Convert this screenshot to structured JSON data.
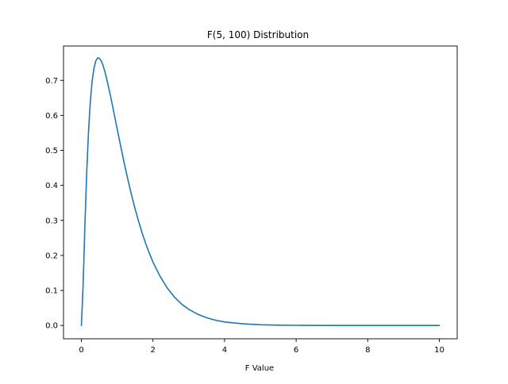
{
  "chart_data": {
    "type": "line",
    "title": "F(5, 100) Distribution",
    "xlabel": "F Value",
    "ylabel": "",
    "xlim": [
      -0.5,
      10.5
    ],
    "ylim": [
      -0.038,
      0.798
    ],
    "xticks": [
      0,
      2,
      4,
      6,
      8,
      10
    ],
    "yticks": [
      0.0,
      0.1,
      0.2,
      0.3,
      0.4,
      0.5,
      0.6,
      0.7
    ],
    "xtick_labels": [
      "0",
      "2",
      "4",
      "6",
      "8",
      "10"
    ],
    "ytick_labels": [
      "0.0",
      "0.1",
      "0.2",
      "0.3",
      "0.4",
      "0.5",
      "0.6",
      "0.7"
    ],
    "grid": false,
    "legend": false,
    "series": [
      {
        "color": "#1f77b4",
        "x": [
          0,
          0.05,
          0.1,
          0.15,
          0.2,
          0.25,
          0.3,
          0.35,
          0.4,
          0.45,
          0.5,
          0.55,
          0.6,
          0.65,
          0.7,
          0.8,
          0.9,
          1.0,
          1.1,
          1.2,
          1.3,
          1.4,
          1.5,
          1.6,
          1.7,
          1.8,
          1.9,
          2.0,
          2.2,
          2.4,
          2.6,
          2.8,
          3.0,
          3.25,
          3.5,
          3.75,
          4.0,
          4.5,
          5.0,
          5.5,
          6.0,
          7.0,
          8.0,
          9.0,
          10.0
        ],
        "y": [
          0.0,
          0.121,
          0.293,
          0.441,
          0.556,
          0.641,
          0.698,
          0.734,
          0.755,
          0.764,
          0.763,
          0.756,
          0.744,
          0.727,
          0.707,
          0.662,
          0.612,
          0.561,
          0.511,
          0.462,
          0.416,
          0.373,
          0.333,
          0.297,
          0.263,
          0.233,
          0.206,
          0.181,
          0.14,
          0.107,
          0.081,
          0.061,
          0.046,
          0.032,
          0.022,
          0.015,
          0.01,
          0.005,
          0.002,
          0.001,
          0.0005,
          0.0001,
          3e-05,
          1e-05,
          0.0
        ]
      }
    ]
  }
}
